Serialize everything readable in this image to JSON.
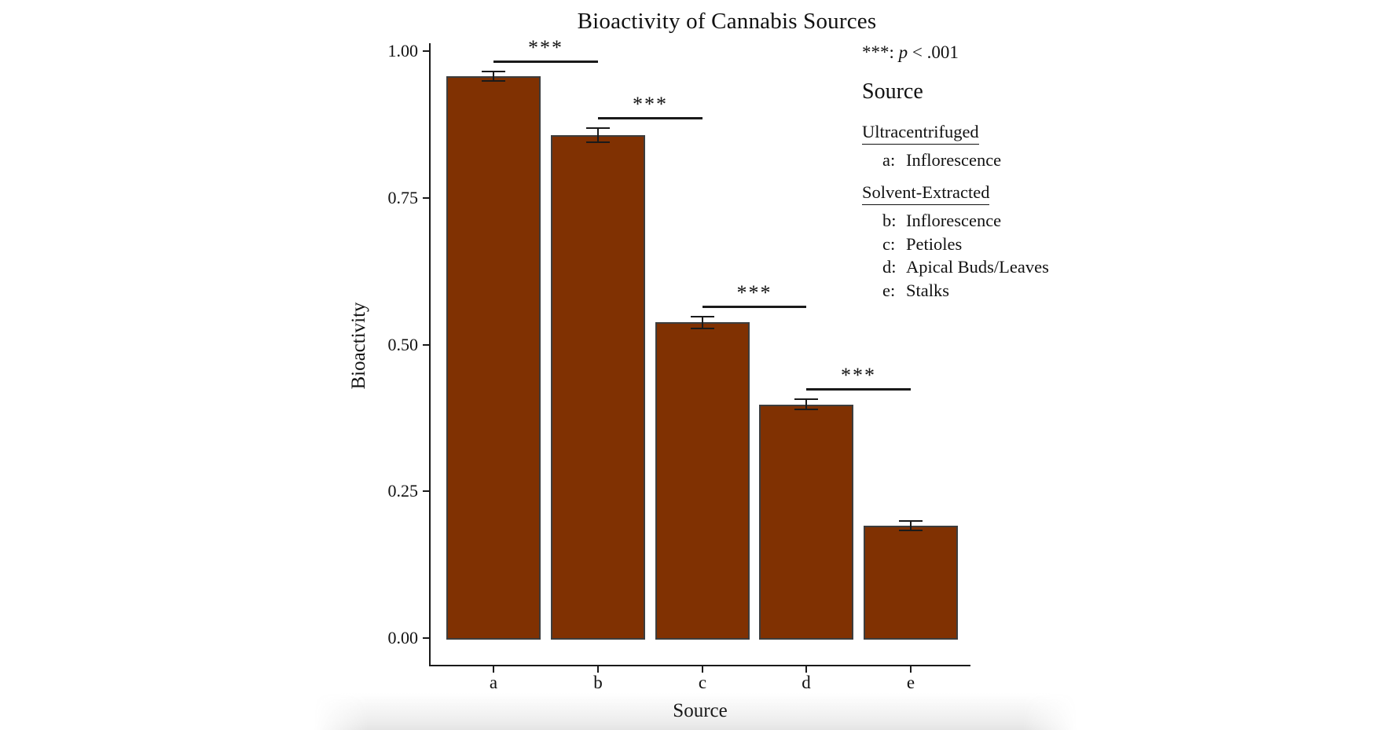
{
  "page": {
    "background": "#ffffff",
    "text_color": "#111111"
  },
  "chart_data": {
    "type": "bar",
    "title": "Bioactivity of Cannabis Sources",
    "xlabel": "Source",
    "ylabel": "Bioactivity",
    "categories": [
      "a",
      "b",
      "c",
      "d",
      "e"
    ],
    "values": [
      0.957,
      0.857,
      0.538,
      0.398,
      0.192
    ],
    "errors": [
      0.008,
      0.012,
      0.01,
      0.009,
      0.008
    ],
    "ylim": [
      0,
      1.0
    ],
    "yticks": [
      0.0,
      0.25,
      0.5,
      0.75,
      1.0
    ],
    "ytick_labels": [
      "0.00",
      "0.25",
      "0.50",
      "0.75",
      "1.00"
    ],
    "grid": false,
    "bar_color": "#803102",
    "bar_border_color": "#3d3d3d",
    "axis_color": "#1a1a1a",
    "significance": [
      {
        "pair": [
          "a",
          "b"
        ],
        "label": "***"
      },
      {
        "pair": [
          "b",
          "c"
        ],
        "label": "***"
      },
      {
        "pair": [
          "c",
          "d"
        ],
        "label": "***"
      },
      {
        "pair": [
          "d",
          "e"
        ],
        "label": "***"
      }
    ]
  },
  "annotation_note": {
    "stars": "***",
    "sep": ": ",
    "var": "p",
    "rest": " < .001"
  },
  "legend": {
    "title": "Source",
    "groups": [
      {
        "header": "Ultracentrifuged",
        "items": [
          {
            "key": "a:",
            "label": "Inflorescence"
          }
        ]
      },
      {
        "header": "Solvent-Extracted",
        "items": [
          {
            "key": "b:",
            "label": "Inflorescence"
          },
          {
            "key": "c:",
            "label": "Petioles"
          },
          {
            "key": "d:",
            "label": "Apical Buds/Leaves"
          },
          {
            "key": "e:",
            "label": "Stalks"
          }
        ]
      }
    ]
  }
}
